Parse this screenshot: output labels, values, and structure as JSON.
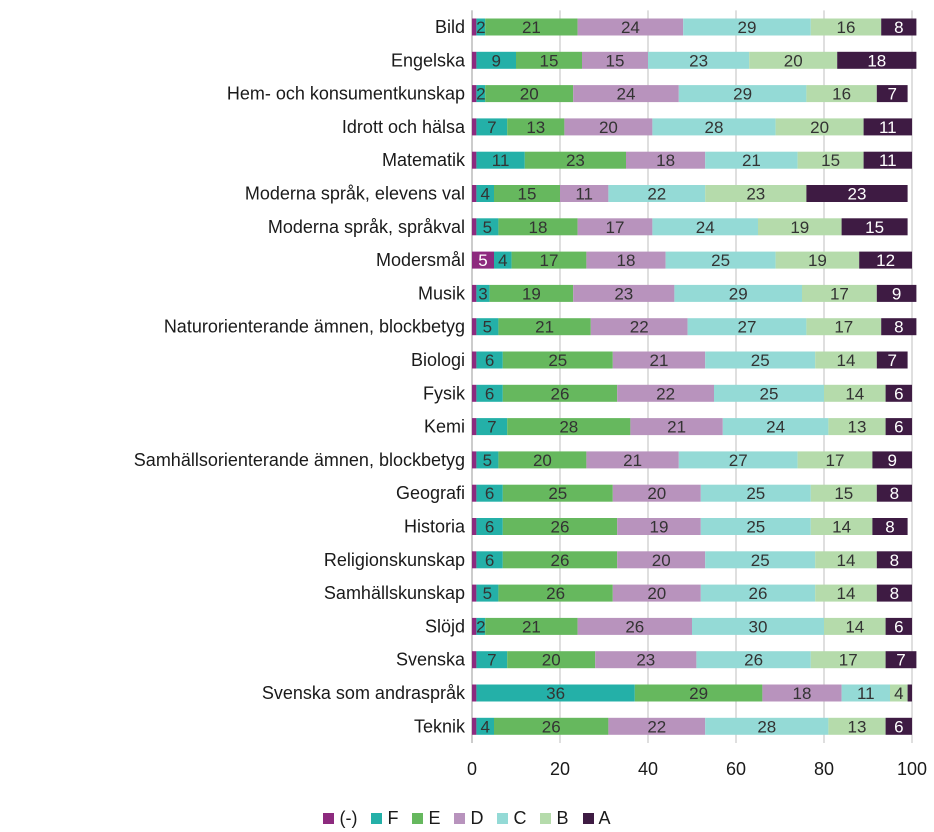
{
  "chart_data": {
    "type": "bar",
    "orientation": "horizontal",
    "stacked": true,
    "xlim": [
      0,
      100
    ],
    "xticks": [
      0,
      20,
      40,
      60,
      80,
      100
    ],
    "grid": "vertical",
    "legend_position": "bottom",
    "categories": [
      "Bild",
      "Engelska",
      "Hem- och konsumentkunskap",
      "Idrott och hälsa",
      "Matematik",
      "Moderna språk, elevens val",
      "Moderna språk, språkval",
      "Modersmål",
      "Musik",
      "Naturorienterande ämnen, blockbetyg",
      "Biologi",
      "Fysik",
      "Kemi",
      "Samhällsorienterande ämnen, blockbetyg",
      "Geografi",
      "Historia",
      "Religionskunskap",
      "Samhällskunskap",
      "Slöjd",
      "Svenska",
      "Svenska som andraspråk",
      "Teknik"
    ],
    "series": [
      {
        "name": "(-)",
        "color": "#8d2a7e",
        "values": [
          1,
          1,
          1,
          1,
          1,
          1,
          1,
          5,
          1,
          1,
          1,
          1,
          1,
          1,
          1,
          1,
          1,
          1,
          1,
          1,
          1,
          1
        ]
      },
      {
        "name": "F",
        "color": "#24b0a8",
        "values": [
          2,
          9,
          2,
          7,
          11,
          4,
          5,
          4,
          3,
          5,
          6,
          6,
          7,
          5,
          6,
          6,
          6,
          5,
          2,
          7,
          36,
          4
        ]
      },
      {
        "name": "E",
        "color": "#66b85e",
        "values": [
          21,
          15,
          20,
          13,
          23,
          15,
          18,
          17,
          19,
          21,
          25,
          26,
          28,
          20,
          25,
          26,
          26,
          26,
          21,
          20,
          29,
          26
        ]
      },
      {
        "name": "D",
        "color": "#b893bd",
        "values": [
          24,
          15,
          24,
          20,
          18,
          11,
          17,
          18,
          23,
          22,
          21,
          22,
          21,
          21,
          20,
          19,
          20,
          20,
          26,
          23,
          18,
          22
        ]
      },
      {
        "name": "C",
        "color": "#94dad6",
        "values": [
          29,
          23,
          29,
          28,
          21,
          22,
          24,
          25,
          29,
          27,
          25,
          25,
          24,
          27,
          25,
          25,
          25,
          26,
          30,
          26,
          11,
          28
        ]
      },
      {
        "name": "B",
        "color": "#b5dbab",
        "values": [
          16,
          20,
          16,
          20,
          15,
          23,
          19,
          19,
          17,
          17,
          14,
          14,
          13,
          17,
          15,
          14,
          14,
          14,
          14,
          17,
          4,
          13
        ]
      },
      {
        "name": "A",
        "color": "#3e1b43",
        "values": [
          8,
          18,
          7,
          11,
          11,
          23,
          15,
          12,
          9,
          8,
          7,
          6,
          6,
          9,
          8,
          8,
          8,
          8,
          6,
          7,
          1,
          6
        ]
      }
    ],
    "data_labels": [
      [
        "",
        "2",
        "21",
        "24",
        "29",
        "16",
        "8"
      ],
      [
        "",
        "9",
        "15",
        "15",
        "23",
        "20",
        "18"
      ],
      [
        "",
        "2",
        "20",
        "24",
        "29",
        "16",
        "7"
      ],
      [
        "",
        "7",
        "13",
        "20",
        "28",
        "20",
        "11"
      ],
      [
        "",
        "11",
        "23",
        "18",
        "21",
        "15",
        "11"
      ],
      [
        "",
        "4",
        "15",
        "11",
        "22",
        "23",
        "23"
      ],
      [
        "",
        "5",
        "18",
        "17",
        "24",
        "19",
        "15"
      ],
      [
        "5",
        "4",
        "17",
        "18",
        "25",
        "19",
        "12"
      ],
      [
        "",
        "3",
        "19",
        "23",
        "29",
        "17",
        "9"
      ],
      [
        "",
        "5",
        "21",
        "22",
        "27",
        "17",
        "8"
      ],
      [
        "",
        "6",
        "25",
        "21",
        "25",
        "14",
        "7"
      ],
      [
        "",
        "6",
        "26",
        "22",
        "25",
        "14",
        "6"
      ],
      [
        "",
        "7",
        "28",
        "21",
        "24",
        "13",
        "6"
      ],
      [
        "",
        "5",
        "20",
        "21",
        "27",
        "17",
        "9"
      ],
      [
        "",
        "6",
        "25",
        "20",
        "25",
        "15",
        "8"
      ],
      [
        "",
        "6",
        "26",
        "19",
        "25",
        "14",
        "8"
      ],
      [
        "",
        "6",
        "26",
        "20",
        "25",
        "14",
        "8"
      ],
      [
        "",
        "5",
        "26",
        "20",
        "26",
        "14",
        "8"
      ],
      [
        "",
        "2",
        "21",
        "26",
        "30",
        "14",
        "6"
      ],
      [
        "",
        "7",
        "20",
        "23",
        "26",
        "17",
        "7"
      ],
      [
        "",
        "36",
        "29",
        "18",
        "11",
        "4",
        ""
      ],
      [
        "",
        "4",
        "26",
        "22",
        "28",
        "13",
        "6"
      ]
    ],
    "label_colors": {
      "dark_text": "#333333",
      "light_text": "#ffffff"
    }
  }
}
